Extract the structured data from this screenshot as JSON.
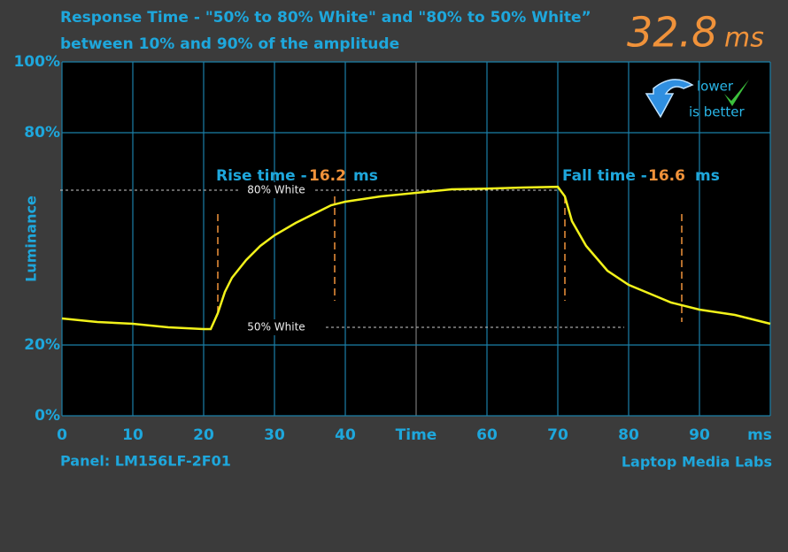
{
  "chart_data": {
    "type": "line",
    "title": [
      "Response Time - \"50% to 80% White\" and \"80% to 50% White”",
      "between 10% and 90% of the amplitude"
    ],
    "y_label": "Luminance",
    "total": {
      "value": "32.8",
      "unit": "ms"
    },
    "badge": [
      "lower",
      "is better"
    ],
    "rise": {
      "label": "Rise time -",
      "value": "16.2",
      "unit": "ms"
    },
    "fall": {
      "label": "Fall time -",
      "value": "16.6",
      "unit": "ms"
    },
    "footer_left": "Panel: LM156LF-2F01",
    "footer_right": "Laptop Media Labs",
    "xlim": [
      0,
      100
    ],
    "ylim": [
      0,
      100
    ],
    "xticks": [
      0,
      10,
      20,
      30,
      40,
      {
        "value": 50,
        "label": "Time"
      },
      60,
      70,
      80,
      90,
      {
        "value": 100,
        "label": "ms"
      }
    ],
    "yticks": [
      {
        "value": 0,
        "label": "0%"
      },
      {
        "value": 20,
        "label": "20%"
      },
      {
        "value": 80,
        "label": "80%"
      },
      {
        "value": 100,
        "label": "100%"
      }
    ],
    "grid": true,
    "reference_lines": [
      {
        "label": "80% White",
        "value": 63.75
      },
      {
        "label": "50% White",
        "value": 25
      }
    ],
    "markers": [
      {
        "x": 22,
        "y": [
          28,
          57
        ]
      },
      {
        "x": 38.5,
        "y": [
          32.5,
          62
        ]
      },
      {
        "x": 71,
        "y": [
          32.5,
          62
        ]
      },
      {
        "x": 87.5,
        "y": [
          26.5,
          57
        ]
      }
    ],
    "series": [
      {
        "color": "#f2f21a",
        "x": [
          0,
          5,
          10,
          15,
          20,
          21,
          22,
          23,
          24,
          26,
          28,
          30,
          33,
          36,
          38,
          40,
          45,
          50,
          55,
          60,
          65,
          70,
          71,
          72,
          74,
          77,
          80,
          83,
          86,
          90,
          95,
          100
        ],
        "values": [
          27.5,
          26.5,
          26,
          25,
          24.5,
          24.5,
          29,
          35,
          39,
          44,
          48,
          51,
          54.5,
          57.5,
          59.5,
          60.5,
          62,
          63,
          64,
          64.2,
          64.5,
          64.7,
          62,
          55,
          48,
          41,
          37,
          34.5,
          32,
          30,
          28.5,
          26
        ]
      }
    ]
  }
}
